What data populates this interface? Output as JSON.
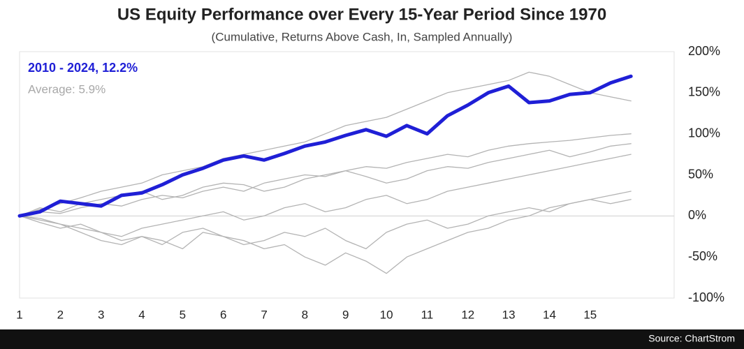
{
  "chart_data": {
    "type": "line",
    "title": "US Equity Performance over Every 15-Year Period Since 1970",
    "subtitle": "(Cumulative, Returns Above Cash, In, Sampled Annually)",
    "annotations": [
      "2010 - 2024, 12.2%",
      "Average: 5.9%"
    ],
    "source": "Source: ChartStrom",
    "x": [
      1,
      1.5,
      2,
      2.5,
      3,
      3.5,
      4,
      4.5,
      5,
      5.5,
      6,
      6.5,
      7,
      7.5,
      8,
      8.5,
      9,
      9.5,
      10,
      10.5,
      11,
      11.5,
      12,
      12.5,
      13,
      13.5,
      14,
      14.5,
      15,
      15.5,
      16
    ],
    "series": [
      {
        "color": "#b3b3b3",
        "values": [
          0,
          -5,
          -10,
          -15,
          -20,
          -30,
          -25,
          -35,
          -20,
          -15,
          -25,
          -30,
          -40,
          -35,
          -50,
          -60,
          -45,
          -55,
          -70,
          -50,
          -40,
          -30,
          -20,
          -15,
          -5,
          0,
          10,
          15,
          20,
          25,
          30
        ]
      },
      {
        "color": "#b3b3b3",
        "values": [
          0,
          8,
          15,
          22,
          30,
          35,
          40,
          50,
          55,
          60,
          70,
          75,
          80,
          85,
          90,
          100,
          110,
          115,
          120,
          130,
          140,
          150,
          155,
          160,
          165,
          175,
          170,
          160,
          150,
          145,
          140
        ]
      },
      {
        "color": "#b3b3b3",
        "values": [
          0,
          5,
          3,
          10,
          15,
          12,
          20,
          25,
          22,
          30,
          35,
          30,
          40,
          45,
          50,
          48,
          55,
          60,
          58,
          65,
          70,
          75,
          72,
          80,
          85,
          88,
          90,
          92,
          95,
          98,
          100
        ]
      },
      {
        "color": "#b3b3b3",
        "values": [
          0,
          -8,
          -15,
          -10,
          -20,
          -25,
          -15,
          -10,
          -5,
          0,
          5,
          -5,
          0,
          10,
          15,
          5,
          10,
          20,
          25,
          15,
          20,
          30,
          35,
          40,
          45,
          50,
          55,
          60,
          65,
          70,
          75
        ]
      },
      {
        "color": "#b3b3b3",
        "values": [
          0,
          10,
          5,
          15,
          20,
          25,
          30,
          20,
          25,
          35,
          40,
          38,
          30,
          35,
          45,
          50,
          55,
          48,
          40,
          45,
          55,
          60,
          58,
          65,
          70,
          75,
          80,
          72,
          78,
          85,
          88
        ]
      },
      {
        "color": "#b3b3b3",
        "values": [
          0,
          -3,
          -10,
          -20,
          -30,
          -35,
          -25,
          -30,
          -40,
          -20,
          -25,
          -35,
          -30,
          -20,
          -25,
          -15,
          -30,
          -40,
          -20,
          -10,
          -5,
          -15,
          -10,
          0,
          5,
          10,
          5,
          15,
          20,
          15,
          20
        ]
      },
      {
        "color": "#1f1fd6",
        "values": [
          0,
          5,
          18,
          15,
          12,
          25,
          28,
          38,
          50,
          58,
          68,
          73,
          68,
          76,
          85,
          90,
          98,
          105,
          97,
          110,
          100,
          122,
          135,
          150,
          158,
          138,
          140,
          148,
          150,
          162,
          170
        ]
      }
    ],
    "xlim": [
      1,
      17.06
    ],
    "xticks": [
      1,
      2,
      3,
      4,
      5,
      6,
      7,
      8,
      9,
      10,
      11,
      12,
      13,
      14,
      15
    ],
    "ylim": [
      -100,
      200
    ],
    "yticks": [
      {
        "value": -100,
        "label": "-100%"
      },
      {
        "value": -50,
        "label": "-50%"
      },
      {
        "value": 0,
        "label": "0%"
      },
      {
        "value": 50,
        "label": "50%"
      },
      {
        "value": 100,
        "label": "100%"
      },
      {
        "value": 150,
        "label": "150%"
      },
      {
        "value": 200,
        "label": "200%"
      }
    ],
    "grid": false
  }
}
